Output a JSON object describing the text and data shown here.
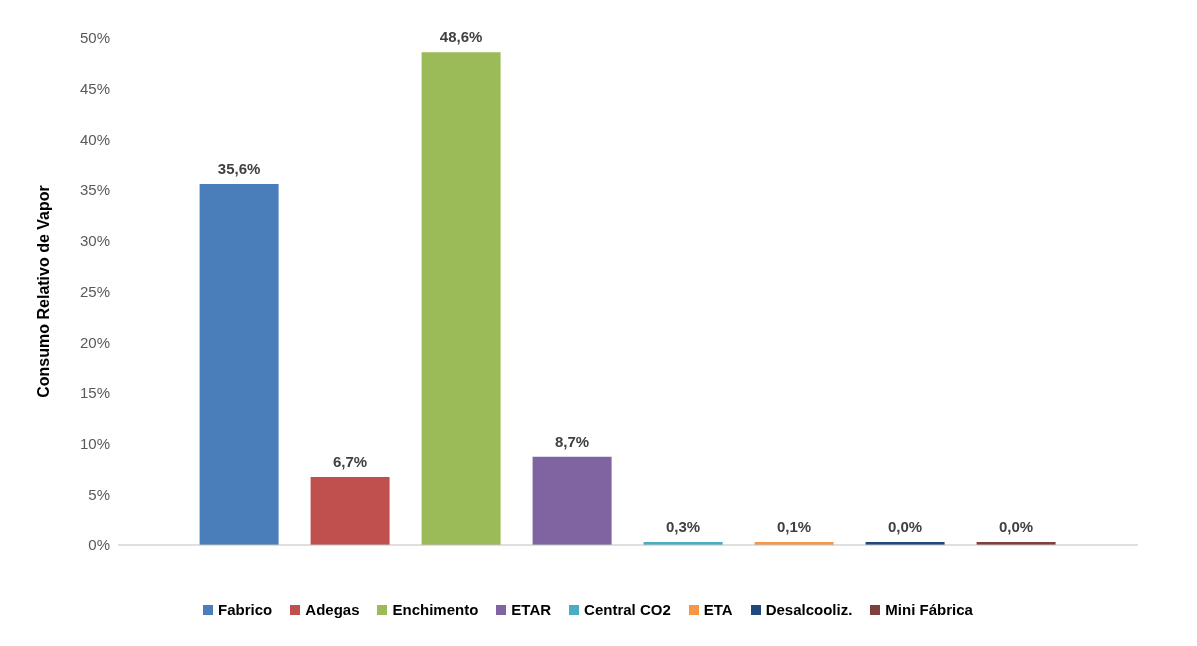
{
  "chart_data": {
    "type": "bar",
    "ylabel": "Consumo Relativo de Vapor",
    "categories": [
      null
    ],
    "series": [
      {
        "name": "Fabrico",
        "color": "#4a7ebb",
        "values": [
          35.6
        ],
        "value_labels": [
          "35,6%"
        ]
      },
      {
        "name": "Adegas",
        "color": "#c0504d",
        "values": [
          6.7
        ],
        "value_labels": [
          "6,7%"
        ]
      },
      {
        "name": "Enchimento",
        "color": "#9bbb59",
        "values": [
          48.6
        ],
        "value_labels": [
          "48,6%"
        ]
      },
      {
        "name": "ETAR",
        "color": "#8064a2",
        "values": [
          8.7
        ],
        "value_labels": [
          "8,7%"
        ]
      },
      {
        "name": "Central CO2",
        "color": "#4bacc6",
        "values": [
          0.3
        ],
        "value_labels": [
          "0,3%"
        ]
      },
      {
        "name": "ETA",
        "color": "#f79646",
        "values": [
          0.1
        ],
        "value_labels": [
          "0,1%"
        ]
      },
      {
        "name": "Desalcooliz.",
        "color": "#1f497d",
        "values": [
          0
        ],
        "value_labels": [
          "0,0%"
        ]
      },
      {
        "name": "Mini Fábrica",
        "color": "#7f3f3f",
        "values": [
          0
        ],
        "value_labels": [
          "0,0%"
        ]
      }
    ],
    "ylim": [
      0,
      50
    ],
    "yticks": [
      {
        "value": 0,
        "label": "0%"
      },
      {
        "value": 5,
        "label": "5%"
      },
      {
        "value": 10,
        "label": "10%"
      },
      {
        "value": 15,
        "label": "15%"
      },
      {
        "value": 20,
        "label": "20%"
      },
      {
        "value": 25,
        "label": "25%"
      },
      {
        "value": 30,
        "label": "30%"
      },
      {
        "value": 35,
        "label": "35%"
      },
      {
        "value": 40,
        "label": "40%"
      },
      {
        "value": 45,
        "label": "45%"
      },
      {
        "value": 50,
        "label": "50%"
      }
    ],
    "grid": false,
    "legend": "bottom"
  }
}
